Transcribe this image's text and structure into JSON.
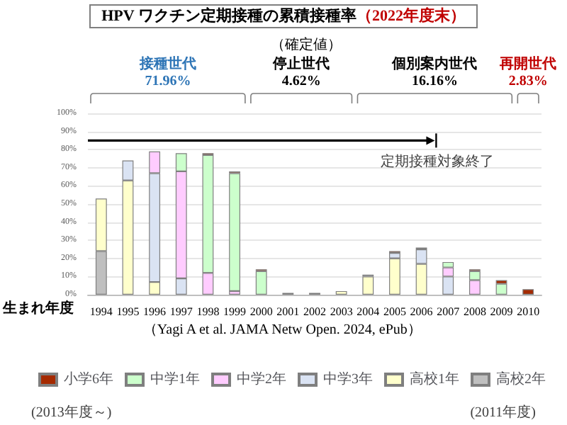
{
  "chart_data": {
    "type": "bar",
    "title": "HPV ワクチン定期接種の累積接種率",
    "subtitle": "（確定値）",
    "xlabel": "生まれ年度",
    "categories": [
      "1994",
      "1995",
      "1996",
      "1997",
      "1998",
      "1999",
      "2000",
      "2001",
      "2002",
      "2003",
      "2004",
      "2005",
      "2006",
      "2007",
      "2008",
      "2009",
      "2010"
    ],
    "stacked": true,
    "series": [
      {
        "name": "高校2年",
        "color": "#bfbfbf",
        "values": [
          24,
          null,
          null,
          null,
          null,
          null,
          null,
          null,
          null,
          null,
          null,
          null,
          null,
          null,
          null,
          null,
          null
        ]
      },
      {
        "name": "高校1年",
        "color": "#ffffcc",
        "values": [
          29,
          63,
          7,
          null,
          null,
          null,
          null,
          null,
          null,
          2,
          10,
          20,
          17,
          null,
          null,
          null,
          null
        ]
      },
      {
        "name": "中学3年",
        "color": "#dae3f3",
        "values": [
          null,
          11,
          60,
          9,
          null,
          null,
          null,
          null,
          null,
          null,
          1,
          3,
          8,
          10,
          null,
          null,
          null
        ]
      },
      {
        "name": "中学2年",
        "color": "#ffccff",
        "values": [
          null,
          null,
          12,
          59,
          12,
          2,
          null,
          null,
          null,
          null,
          null,
          null,
          null,
          5,
          8,
          null,
          null
        ]
      },
      {
        "name": "中学1年",
        "color": "#ccffcc",
        "values": [
          null,
          null,
          null,
          10,
          65,
          65,
          13,
          null,
          null,
          null,
          null,
          null,
          1,
          3,
          5,
          6,
          null
        ]
      },
      {
        "name": "小学6年",
        "color": "#a52a00",
        "values": [
          null,
          null,
          null,
          null,
          1,
          1,
          1,
          1,
          1,
          null,
          null,
          1,
          null,
          null,
          1,
          2,
          3
        ]
      }
    ],
    "ylim": [
      0,
      100
    ],
    "yticks": [
      {
        "value": 0,
        "label": "0%"
      },
      {
        "value": 10,
        "label": "10%"
      },
      {
        "value": 20,
        "label": "20%"
      },
      {
        "value": 30,
        "label": "30%"
      },
      {
        "value": 40,
        "label": "40%"
      },
      {
        "value": 50,
        "label": "50%"
      },
      {
        "value": 60,
        "label": "60%"
      },
      {
        "value": 70,
        "label": "70%"
      },
      {
        "value": 80,
        "label": "80%"
      },
      {
        "value": 90,
        "label": "90%"
      },
      {
        "value": 100,
        "label": "100%"
      }
    ],
    "grid": "y",
    "legend": "bottom",
    "annotations": [
      "（2022年度末）",
      "接種世代\n71.96%",
      "停止世代\n4.62%",
      "個別案内世代\n16.16%",
      "再開世代\n2.83%",
      "定期接種対象終了",
      "(2013年度～)",
      "(2011年度)",
      "（Yagi A et al. JAMA Netw Open. 2024, ePub）"
    ]
  }
}
